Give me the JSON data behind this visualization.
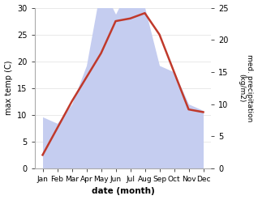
{
  "months": [
    "Jan",
    "Feb",
    "Mar",
    "Apr",
    "May",
    "Jun",
    "Jul",
    "Aug",
    "Sep",
    "Oct",
    "Nov",
    "Dec"
  ],
  "temperature": [
    2.5,
    7.5,
    12.5,
    17.0,
    21.5,
    27.5,
    28.0,
    29.0,
    25.0,
    18.0,
    11.0,
    10.5
  ],
  "precipitation": [
    8.0,
    7.0,
    10.0,
    16.0,
    28.5,
    24.0,
    28.5,
    25.0,
    16.0,
    15.0,
    10.0,
    9.0
  ],
  "temp_color": "#c0392b",
  "precip_fill_color": "#c5cdf0",
  "temp_ylim": [
    0,
    30
  ],
  "precip_ylim": [
    0,
    25
  ],
  "precip_scale_factor": 1.2,
  "xlabel": "date (month)",
  "ylabel_left": "max temp (C)",
  "ylabel_right": "med. precipitation\n(kg/m2)",
  "bg_color": "#ffffff",
  "grid_color": "#e0e0e0",
  "temp_linewidth": 1.8,
  "left_yticks": [
    0,
    5,
    10,
    15,
    20,
    25,
    30
  ],
  "right_yticks": [
    0,
    5,
    10,
    15,
    20,
    25
  ],
  "right_yticklabels": [
    "0",
    "5",
    "10",
    "15",
    "20",
    "25"
  ]
}
